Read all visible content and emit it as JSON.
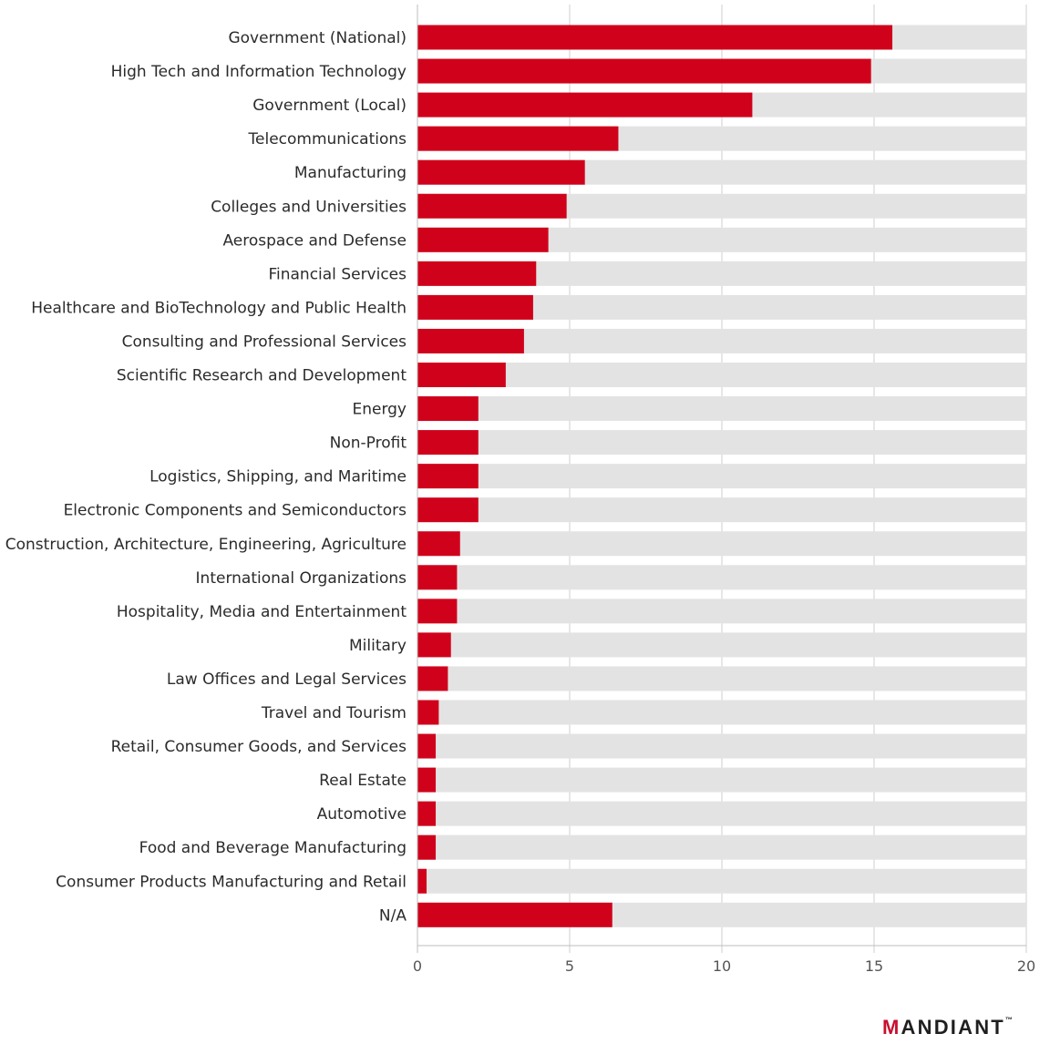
{
  "chart_data": {
    "type": "bar",
    "orientation": "horizontal",
    "categories": [
      "Government (National)",
      "High Tech and Information Technology",
      "Government (Local)",
      "Telecommunications",
      "Manufacturing",
      "Colleges and Universities",
      "Aerospace and Defense",
      "Financial Services",
      "Healthcare and BioTechnology and Public Health",
      "Consulting and Professional Services",
      "Scientific Research and Development",
      "Energy",
      "Non-Profit",
      "Logistics, Shipping, and Maritime",
      "Electronic Components and Semiconductors",
      "Construction, Architecture, Engineering, Agriculture",
      "International Organizations",
      "Hospitality, Media and Entertainment",
      "Military",
      "Law Offices and Legal Services",
      "Travel and Tourism",
      "Retail, Consumer Goods, and Services",
      "Real Estate",
      "Automotive",
      "Food and Beverage Manufacturing",
      "Consumer Products Manufacturing and Retail",
      "N/A"
    ],
    "values": [
      15.6,
      14.9,
      11.0,
      6.6,
      5.5,
      4.9,
      4.3,
      3.9,
      3.8,
      3.5,
      2.9,
      2.0,
      2.0,
      2.0,
      2.0,
      1.4,
      1.3,
      1.3,
      1.1,
      1.0,
      0.7,
      0.6,
      0.6,
      0.6,
      0.6,
      0.3,
      6.4
    ],
    "xlim": [
      0,
      20
    ],
    "xticks": [
      0,
      5,
      10,
      15,
      20
    ],
    "title": "",
    "xlabel": "",
    "ylabel": "",
    "grid": true,
    "bar_color": "#d0021b",
    "track_color": "#e3e3e3",
    "grid_color": "#cfcfcf",
    "axis_color": "#bdbdbd"
  },
  "brand": {
    "logo_initial": "M",
    "logo_rest": "ANDIANT",
    "logo_mark": "™"
  }
}
